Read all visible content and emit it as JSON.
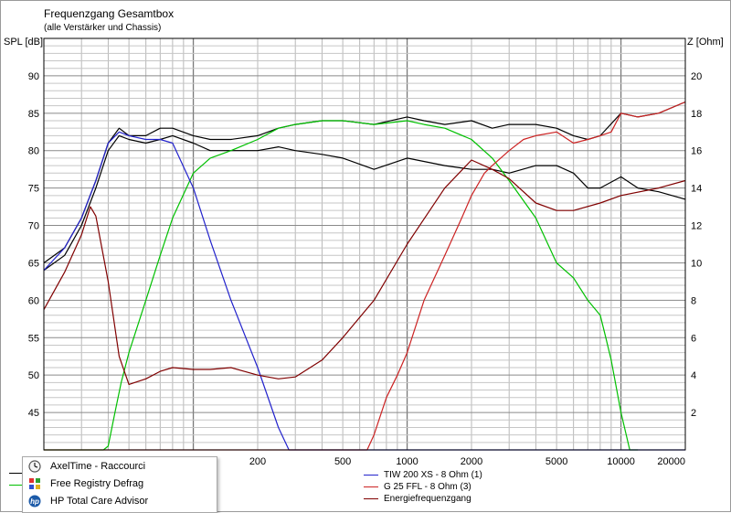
{
  "chart_data": {
    "type": "line",
    "title": "Frequenzgang Gesamtbox",
    "subtitle": "(alle Verstärker und Chassis)",
    "ylabel": "SPL [dB]",
    "y2label": "Z [Ohm]",
    "xscale": "log",
    "xlim": [
      20,
      20000
    ],
    "ylim": [
      40,
      95
    ],
    "y2lim": [
      0,
      22
    ],
    "x_ticks": [
      200,
      500,
      1000,
      2000,
      5000,
      10000,
      20000
    ],
    "y_ticks": [
      45,
      50,
      55,
      60,
      65,
      70,
      75,
      80,
      85,
      90
    ],
    "y2_ticks": [
      2,
      4,
      6,
      8,
      10,
      12,
      14,
      16,
      18,
      20
    ],
    "grid": true,
    "series": [
      {
        "name": "",
        "color": "#000000",
        "axis": "spl",
        "x": [
          20,
          25,
          30,
          35,
          40,
          45,
          50,
          60,
          70,
          80,
          100,
          120,
          150,
          200,
          250,
          300,
          400,
          500,
          700,
          1000,
          1200,
          1500,
          2000,
          2500,
          3000,
          4000,
          5000,
          6000,
          7000,
          8000,
          10000,
          12000,
          15000,
          20000
        ],
        "y": [
          65,
          67,
          71,
          76,
          81,
          83,
          82,
          82,
          83,
          83,
          82,
          81.5,
          81.5,
          82,
          83,
          83.5,
          84,
          84,
          83.5,
          84.5,
          84,
          83.5,
          84,
          83,
          83.5,
          83.5,
          83,
          82,
          81.5,
          82,
          85,
          84.5,
          85,
          86.5
        ]
      },
      {
        "name": "",
        "color": "#000000",
        "axis": "spl",
        "x": [
          20,
          25,
          30,
          35,
          40,
          45,
          50,
          60,
          70,
          80,
          100,
          120,
          150,
          200,
          250,
          300,
          400,
          500,
          700,
          1000,
          1500,
          2000,
          2500,
          3000,
          4000,
          5000,
          6000,
          7000,
          8000,
          10000,
          12000,
          15000,
          20000
        ],
        "y": [
          64,
          66,
          70,
          75,
          80,
          82,
          81.5,
          81,
          81.5,
          82,
          81,
          80,
          80,
          80,
          80.5,
          80,
          79.5,
          79,
          77.5,
          79,
          78,
          77.5,
          77.5,
          77,
          78,
          78,
          77,
          75,
          75,
          76.5,
          75,
          74.5,
          73.5
        ]
      },
      {
        "name": "",
        "color": "#00c000",
        "axis": "spl",
        "x": [
          20,
          30,
          38,
          40,
          43,
          46,
          50,
          60,
          70,
          80,
          100,
          120,
          150,
          200,
          250,
          300,
          400,
          500,
          700,
          1000,
          1200,
          1500,
          2000,
          2500,
          3000,
          4000,
          5000,
          6000,
          7000,
          8000,
          8500,
          9000,
          10000,
          11000,
          12000
        ],
        "y": [
          40,
          40,
          40,
          40.5,
          45,
          49,
          53,
          60,
          66,
          71,
          77,
          79,
          80,
          81.5,
          83,
          83.5,
          84,
          84,
          83.5,
          84,
          83.5,
          83,
          81.5,
          79,
          76,
          71,
          65,
          63,
          60,
          58,
          55,
          52,
          45,
          40,
          40
        ]
      },
      {
        "name": "TIW 200 XS - 8 Ohm (1)",
        "color": "#2222cc",
        "axis": "spl",
        "x": [
          20,
          25,
          30,
          35,
          40,
          45,
          50,
          60,
          70,
          80,
          100,
          120,
          150,
          200,
          250,
          280,
          300,
          350,
          500,
          1000,
          2000,
          5000,
          20000
        ],
        "y": [
          64,
          67,
          71,
          76,
          81,
          82.5,
          82,
          81.5,
          81.5,
          81,
          75,
          68,
          60,
          51,
          43,
          40,
          40,
          40,
          40,
          40,
          40,
          40,
          40
        ]
      },
      {
        "name": "G 25 FFL - 8 Ohm (3)",
        "color": "#cc2222",
        "axis": "spl",
        "x": [
          20,
          150,
          300,
          500,
          650,
          700,
          800,
          900,
          1000,
          1200,
          1500,
          1800,
          2000,
          2300,
          2500,
          3000,
          3500,
          4000,
          5000,
          6000,
          7000,
          8000,
          9000,
          10000,
          12000,
          15000,
          20000
        ],
        "y": [
          40,
          40,
          40,
          40,
          40,
          42,
          47,
          50,
          53,
          60,
          66,
          71,
          74,
          77,
          78,
          80,
          81.5,
          82,
          82.5,
          81,
          81.5,
          82,
          82.5,
          85,
          84.5,
          85,
          86.5
        ]
      },
      {
        "name": "Energiefrequenzgang",
        "color": "#800000",
        "axis": "impedance",
        "x": [
          20,
          25,
          30,
          33,
          35,
          40,
          45,
          50,
          60,
          70,
          80,
          100,
          120,
          150,
          200,
          250,
          300,
          400,
          500,
          700,
          1000,
          1500,
          2000,
          2500,
          3000,
          4000,
          5000,
          6000,
          8000,
          10000,
          15000,
          20000
        ],
        "y": [
          7.5,
          9.5,
          11.5,
          13,
          12.5,
          9,
          5,
          3.5,
          3.8,
          4.2,
          4.4,
          4.3,
          4.3,
          4.4,
          4,
          3.8,
          3.9,
          4.8,
          6,
          8,
          11,
          14,
          15.5,
          15,
          14.5,
          13.2,
          12.8,
          12.8,
          13.2,
          13.6,
          14,
          14.4
        ]
      }
    ]
  },
  "legend_right": [
    {
      "label": "TIW 200 XS - 8 Ohm (1)",
      "color": "#2222cc"
    },
    {
      "label": "G 25 FFL - 8 Ohm (3)",
      "color": "#cc2222"
    },
    {
      "label": "Energiefrequenzgang",
      "color": "#800000"
    }
  ],
  "popup": {
    "items": [
      {
        "label": "AxelTime - Raccourci",
        "icon": "clock-icon"
      },
      {
        "label": "Free Registry Defrag",
        "icon": "defrag-icon"
      },
      {
        "label": "HP Total Care Advisor",
        "icon": "hp-icon"
      }
    ]
  }
}
